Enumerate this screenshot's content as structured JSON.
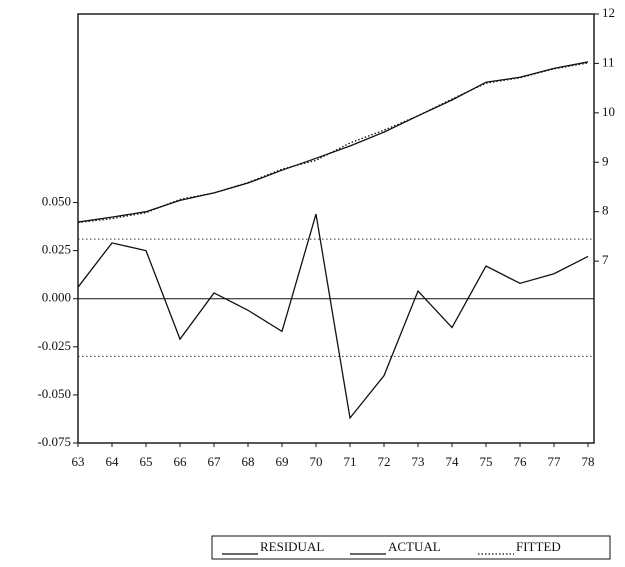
{
  "chart_data": {
    "type": "line",
    "categories": [
      "63",
      "64",
      "65",
      "66",
      "67",
      "68",
      "69",
      "70",
      "71",
      "72",
      "73",
      "74",
      "75",
      "76",
      "77",
      "78"
    ],
    "series": [
      {
        "name": "RESIDUAL",
        "color": "#111111",
        "axis": "y",
        "style": "solid",
        "values": [
          0.006,
          0.029,
          0.025,
          -0.021,
          0.003,
          -0.006,
          -0.017,
          0.044,
          -0.062,
          -0.04,
          0.004,
          -0.015,
          0.017,
          0.008,
          0.013,
          0.022
        ]
      },
      {
        "name": "ACTUAL",
        "color": "#111111",
        "axis": "y2",
        "style": "solid",
        "values": [
          7.79,
          7.89,
          8.0,
          8.23,
          8.38,
          8.58,
          8.84,
          9.08,
          9.33,
          9.61,
          9.94,
          10.26,
          10.62,
          10.72,
          10.9,
          11.03
        ]
      },
      {
        "name": "FITTED",
        "color": "#111111",
        "axis": "y2",
        "style": "dotted",
        "values": [
          7.78,
          7.86,
          7.98,
          8.25,
          8.38,
          8.59,
          8.86,
          9.04,
          9.39,
          9.65,
          9.94,
          10.28,
          10.6,
          10.71,
          10.89,
          11.01
        ]
      }
    ],
    "ylim": [
      -0.075,
      0.148
    ],
    "yticks": [
      {
        "value": -0.075,
        "label": "-0.075"
      },
      {
        "value": -0.05,
        "label": "-0.050"
      },
      {
        "value": -0.025,
        "label": "-0.025"
      },
      {
        "value": 0,
        "label": "0.000"
      },
      {
        "value": 0.025,
        "label": "0.025"
      },
      {
        "value": 0.05,
        "label": "0.050"
      }
    ],
    "y2lim": [
      3.32,
      12
    ],
    "y2ticks": [
      7,
      8,
      9,
      10,
      11,
      12
    ],
    "se_bands": [
      -0.03,
      0.031
    ],
    "zero_line": 0
  }
}
